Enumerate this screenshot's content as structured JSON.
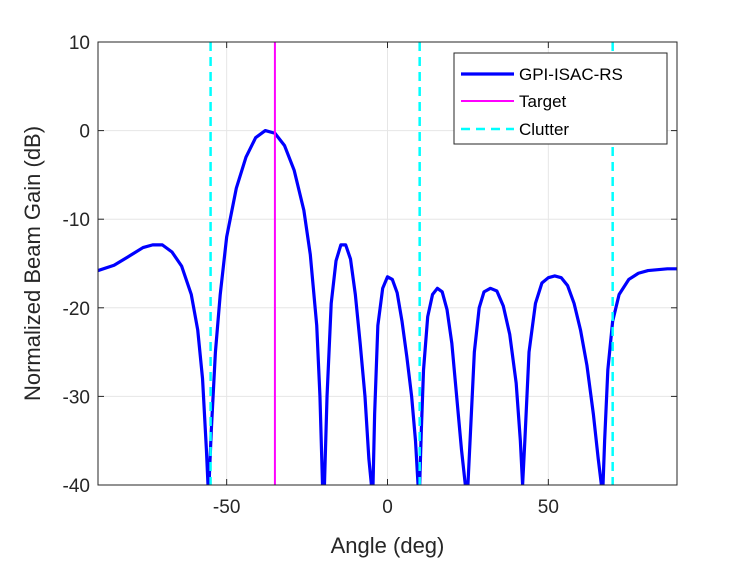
{
  "chart_data": {
    "type": "line",
    "title": "",
    "xlabel": "Angle (deg)",
    "ylabel": "Normalized Beam Gain (dB)",
    "xlim": [
      -90,
      90
    ],
    "ylim": [
      -40,
      10
    ],
    "grid": true,
    "legend_position": "top-right",
    "xticks": [
      -50,
      0,
      50
    ],
    "xtick_labels": [
      "-50",
      "0",
      "50"
    ],
    "yticks": [
      10,
      0,
      -10,
      -20,
      -30,
      -40
    ],
    "ytick_labels": [
      "10",
      "0",
      "-10",
      "-20",
      "-30",
      "-40"
    ],
    "series": [
      {
        "name": "GPI-ISAC-RS",
        "color": "#0000ff",
        "style": "solid",
        "x": [
          -90,
          -85,
          -80,
          -76,
          -73,
          -70,
          -67,
          -64,
          -61,
          -59,
          -57.5,
          -56.3,
          -55.8,
          -55.5,
          -54.8,
          -53.5,
          -52,
          -50,
          -47,
          -44,
          -41,
          -38,
          -35,
          -32,
          -29,
          -26,
          -24,
          -22,
          -21,
          -20.2,
          -19.6,
          -18.8,
          -17.5,
          -16,
          -14.5,
          -13,
          -11.5,
          -10,
          -8.5,
          -7,
          -5.8,
          -5,
          -4.5,
          -4,
          -3,
          -1.5,
          0,
          1.5,
          3,
          4.5,
          6,
          7.5,
          8.7,
          9.5,
          10,
          10.5,
          11.2,
          12.5,
          14,
          15.5,
          17,
          18.5,
          20,
          21.5,
          23,
          24.2,
          25,
          25.8,
          27,
          28.5,
          30,
          32,
          34,
          36,
          38,
          40,
          41.3,
          42,
          42.7,
          44,
          46,
          48,
          50,
          52,
          54,
          56,
          58,
          60,
          62,
          64,
          65.5,
          66.5,
          67,
          67.5,
          68.5,
          70,
          72,
          75,
          78,
          81,
          84,
          87,
          90
        ],
        "y": [
          -15.8,
          -15.2,
          -14.1,
          -13.2,
          -12.9,
          -12.9,
          -13.7,
          -15.3,
          -18.5,
          -22.5,
          -28,
          -36,
          -40,
          -40,
          -34,
          -25,
          -18.5,
          -12,
          -6.5,
          -3,
          -0.8,
          0,
          -0.3,
          -1.7,
          -4.5,
          -9,
          -14,
          -22,
          -30,
          -40,
          -40,
          -30,
          -19.5,
          -14.7,
          -12.9,
          -12.9,
          -14.5,
          -18.5,
          -24,
          -30,
          -37,
          -40,
          -40,
          -32,
          -22,
          -17.8,
          -16.5,
          -16.8,
          -18.3,
          -21.5,
          -25.5,
          -30,
          -35,
          -40,
          -40,
          -34,
          -27,
          -21,
          -18.5,
          -17.8,
          -18.2,
          -20.2,
          -24,
          -30,
          -36,
          -40,
          -40,
          -34,
          -25,
          -20,
          -18.2,
          -17.8,
          -18.1,
          -19.8,
          -23,
          -28.5,
          -35,
          -40,
          -35,
          -25,
          -19.5,
          -17.2,
          -16.6,
          -16.4,
          -16.6,
          -17.5,
          -19.5,
          -22.5,
          -26.5,
          -32,
          -37,
          -40,
          -40,
          -35,
          -27,
          -21.5,
          -18.5,
          -16.8,
          -16.1,
          -15.8,
          -15.7,
          -15.6,
          -15.6
        ]
      },
      {
        "name": "Target",
        "color": "#ff00ff",
        "style": "solid",
        "x_positions": [
          -35
        ]
      },
      {
        "name": "Clutter",
        "color": "#00ffff",
        "style": "dashed",
        "x_positions": [
          -55,
          10,
          70
        ]
      }
    ]
  }
}
